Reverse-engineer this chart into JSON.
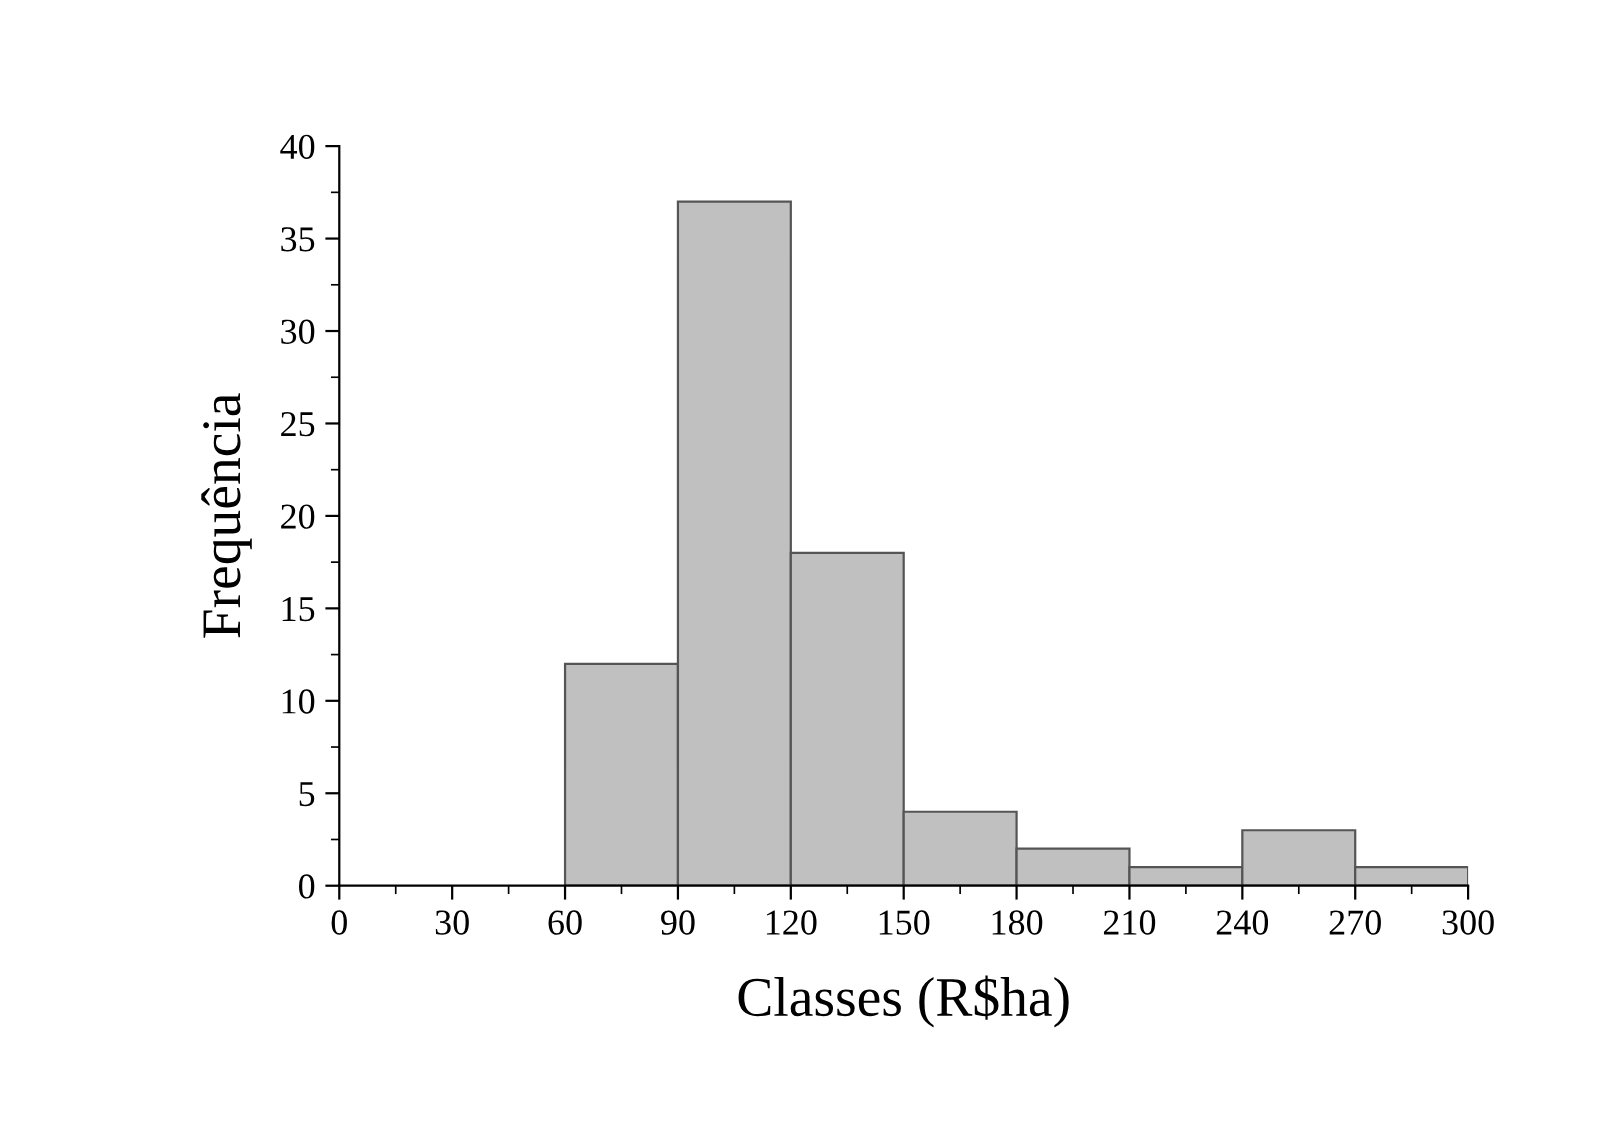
{
  "chart_data": {
    "type": "histogram",
    "xlabel": "Classes (R$ha)",
    "ylabel": "Frequência",
    "bins": [
      60,
      90,
      120,
      150,
      180,
      210,
      240,
      270,
      300
    ],
    "values": [
      12,
      37,
      18,
      4,
      2,
      1,
      3,
      1
    ],
    "color": "#c0c0c0",
    "xlim": [
      0,
      300
    ],
    "xticks": [
      0,
      30,
      60,
      90,
      120,
      150,
      180,
      210,
      240,
      270,
      300
    ],
    "ylim": [
      0,
      40
    ],
    "yticks": [
      0,
      5,
      10,
      15,
      20,
      25,
      30,
      35,
      40
    ],
    "grid": false
  }
}
